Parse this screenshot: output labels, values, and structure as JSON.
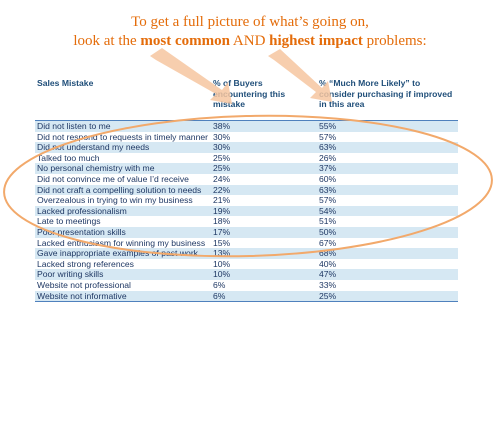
{
  "headline": {
    "line1": "To get a full picture of what’s going on,",
    "line2_prefix": "look at the ",
    "line2_bold1": "most common",
    "line2_mid": " AND ",
    "line2_bold2": "highest impact",
    "line2_suffix": " problems:"
  },
  "colors": {
    "headline": "#e46c0a",
    "table_text": "#1f3864",
    "row_shade": "#d6e8f3",
    "rule": "#4f81bd",
    "ellipse": "#f2a96b",
    "arrow": "#f6c6a0"
  },
  "table": {
    "headers": [
      "Sales Mistake",
      "% of Buyers encountering this mistake",
      "% “Much More Likely” to consider purchasing if improved in this area"
    ],
    "rows": [
      {
        "mistake": "Did not listen to me",
        "pct_buyers": "38%",
        "pct_likely": "55%"
      },
      {
        "mistake": "Did not respond to requests in timely manner",
        "pct_buyers": "30%",
        "pct_likely": "57%"
      },
      {
        "mistake": "Did not understand my needs",
        "pct_buyers": "30%",
        "pct_likely": "63%"
      },
      {
        "mistake": "Talked too much",
        "pct_buyers": "25%",
        "pct_likely": "26%"
      },
      {
        "mistake": "No personal chemistry with me",
        "pct_buyers": "25%",
        "pct_likely": "37%"
      },
      {
        "mistake": "Did not convince me of value I’d receive",
        "pct_buyers": "24%",
        "pct_likely": "60%"
      },
      {
        "mistake": "Did not craft a compelling solution to needs",
        "pct_buyers": "22%",
        "pct_likely": "63%"
      },
      {
        "mistake": "Overzealous in trying to win my business",
        "pct_buyers": "21%",
        "pct_likely": "57%"
      },
      {
        "mistake": "Lacked professionalism",
        "pct_buyers": "19%",
        "pct_likely": "54%"
      },
      {
        "mistake": "Late to meetings",
        "pct_buyers": "18%",
        "pct_likely": "51%"
      },
      {
        "mistake": "Poor presentation skills",
        "pct_buyers": "17%",
        "pct_likely": "50%"
      },
      {
        "mistake": "Lacked enthusiasm for winning my business",
        "pct_buyers": "15%",
        "pct_likely": "67%"
      },
      {
        "mistake": "Gave inappropriate examples of past work",
        "pct_buyers": "13%",
        "pct_likely": "68%"
      },
      {
        "mistake": "Lacked strong references",
        "pct_buyers": "10%",
        "pct_likely": "40%"
      },
      {
        "mistake": "Poor writing skills",
        "pct_buyers": "10%",
        "pct_likely": "47%"
      },
      {
        "mistake": "Website not professional",
        "pct_buyers": "6%",
        "pct_likely": "33%"
      },
      {
        "mistake": "Website not informative",
        "pct_buyers": "6%",
        "pct_likely": "25%"
      }
    ]
  }
}
